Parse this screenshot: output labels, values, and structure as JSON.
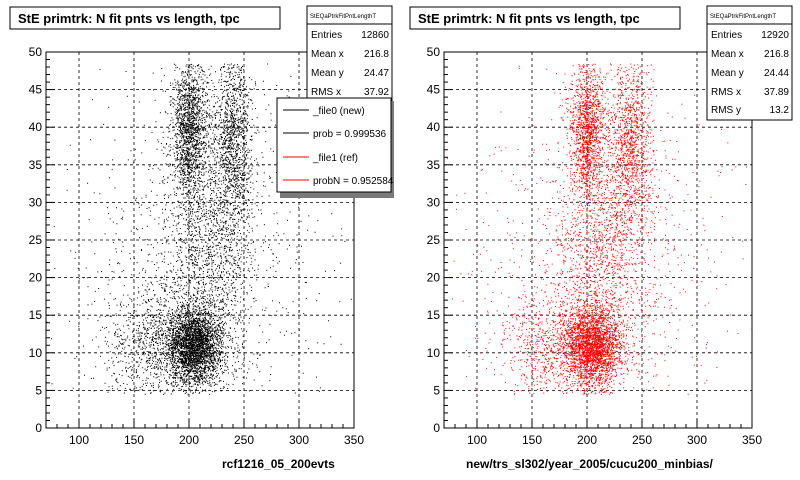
{
  "chart_data": [
    {
      "type": "scatter",
      "title": "StE primtrk: N fit pnts vs length, tpc",
      "xlabel": "rcf1216_05_200evts",
      "ylabel": "",
      "xlim": [
        70,
        350
      ],
      "ylim": [
        0,
        50
      ],
      "x_ticks": [
        "100",
        "150",
        "200",
        "250",
        "300",
        "350"
      ],
      "y_ticks": [
        "0",
        "5",
        "10",
        "15",
        "20",
        "25",
        "30",
        "35",
        "40",
        "45",
        "50"
      ],
      "grid": true,
      "color": "#000000",
      "stats": {
        "name": "StEQaPtrkFitPntLengthT",
        "rows": [
          {
            "label": "Entries",
            "value": "12860"
          },
          {
            "label": "Mean x",
            "value": "216.8"
          },
          {
            "label": "Mean y",
            "value": "24.47"
          },
          {
            "label": "RMS x",
            "value": "37.92"
          }
        ]
      },
      "legend": {
        "placement": "top-right",
        "entries": [
          {
            "label": "_file0 (new)",
            "color": "#000000"
          },
          {
            "label": "prob = 0.999536",
            "color": "#000000"
          },
          {
            "label": "_file1 (ref)",
            "color": "#ff0000"
          },
          {
            "label": "probN = 0.952584",
            "color": "#ff0000"
          }
        ]
      },
      "clusters": [
        {
          "cx": 205,
          "cy": 11,
          "sx": 12,
          "sy": 2.5,
          "weight": 0.28
        },
        {
          "cx": 180,
          "cy": 11,
          "sx": 28,
          "sy": 3.5,
          "weight": 0.14
        },
        {
          "cx": 200,
          "cy": 40,
          "sx": 8,
          "sy": 4.5,
          "weight": 0.16
        },
        {
          "cx": 240,
          "cy": 38,
          "sx": 9,
          "sy": 6,
          "weight": 0.13
        },
        {
          "cx": 215,
          "cy": 25,
          "sx": 20,
          "sy": 9,
          "weight": 0.17
        },
        {
          "cx": 210,
          "cy": 22,
          "sx": 55,
          "sy": 12,
          "weight": 0.12
        }
      ]
    },
    {
      "type": "scatter",
      "title": "StE primtrk: N fit pnts vs length, tpc",
      "xlabel": "new/trs_sl302/year_2005/cucu200_minbias/",
      "ylabel": "",
      "xlim": [
        70,
        350
      ],
      "ylim": [
        0,
        50
      ],
      "x_ticks": [
        "100",
        "150",
        "200",
        "250",
        "300",
        "350"
      ],
      "y_ticks": [
        "0",
        "5",
        "10",
        "15",
        "20",
        "25",
        "30",
        "35",
        "40",
        "45",
        "50"
      ],
      "grid": true,
      "color": "#ff0000",
      "stats": {
        "name": "StEQaPtrkFitPntLengthT",
        "rows": [
          {
            "label": "Entries",
            "value": "12920"
          },
          {
            "label": "Mean x",
            "value": "216.8"
          },
          {
            "label": "Mean y",
            "value": "24.44"
          },
          {
            "label": "RMS x",
            "value": "37.89"
          },
          {
            "label": "RMS y",
            "value": "13.2"
          }
        ]
      },
      "clusters": [
        {
          "cx": 205,
          "cy": 11,
          "sx": 12,
          "sy": 2.5,
          "weight": 0.28
        },
        {
          "cx": 180,
          "cy": 11,
          "sx": 28,
          "sy": 3.5,
          "weight": 0.14
        },
        {
          "cx": 200,
          "cy": 40,
          "sx": 8,
          "sy": 4.5,
          "weight": 0.16
        },
        {
          "cx": 240,
          "cy": 38,
          "sx": 9,
          "sy": 6,
          "weight": 0.13
        },
        {
          "cx": 215,
          "cy": 25,
          "sx": 20,
          "sy": 9,
          "weight": 0.17
        },
        {
          "cx": 210,
          "cy": 22,
          "sx": 55,
          "sy": 12,
          "weight": 0.12
        }
      ]
    }
  ]
}
